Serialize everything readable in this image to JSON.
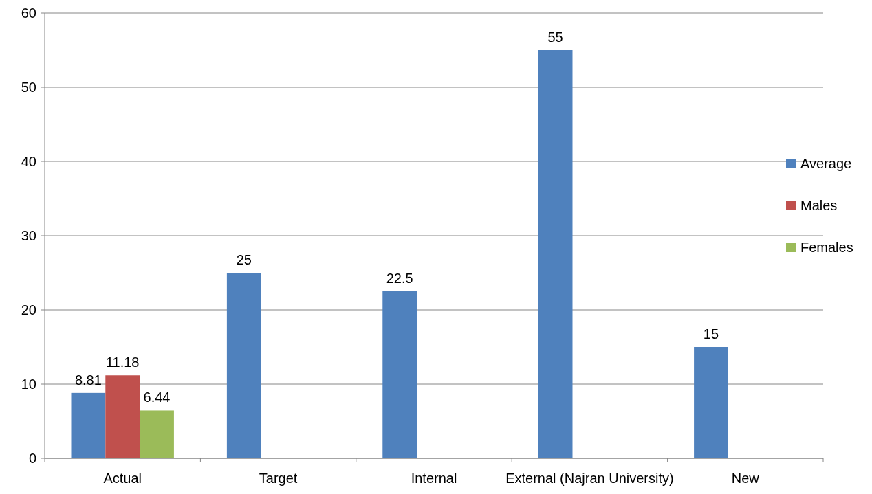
{
  "chart_data": {
    "type": "bar",
    "categories": [
      "Actual",
      "Target",
      "Internal",
      "External (Najran University)",
      "New"
    ],
    "series": [
      {
        "name": "Average",
        "color": "#4f81bd",
        "values": [
          8.81,
          25,
          22.5,
          55,
          15
        ]
      },
      {
        "name": "Males",
        "color": "#c0504d",
        "values": [
          11.18,
          null,
          null,
          null,
          null
        ]
      },
      {
        "name": "Females",
        "color": "#9bbb59",
        "values": [
          6.44,
          null,
          null,
          null,
          null
        ]
      }
    ],
    "ylim": [
      0,
      60
    ],
    "yticks": [
      0,
      10,
      20,
      30,
      40,
      50,
      60
    ],
    "grid": "y",
    "legend": "right",
    "data_labels": true
  }
}
